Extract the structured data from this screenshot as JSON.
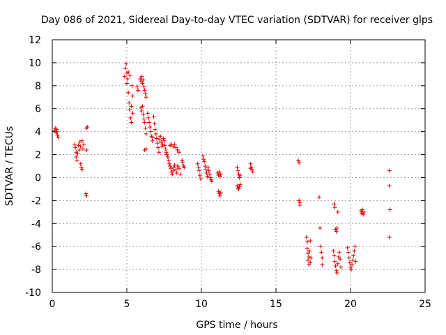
{
  "chart_data": {
    "type": "scatter",
    "title": "Day 086 of 2021, Sidereal Day-to-day VTEC variation (SDTVAR) for receiver glps",
    "xlabel": "GPS time / hours",
    "ylabel": "SDTVAR / TECUs",
    "xlim": [
      0,
      25
    ],
    "ylim": [
      -10,
      12
    ],
    "xticks": [
      0,
      5,
      10,
      15,
      20,
      25
    ],
    "yticks": [
      -10,
      -8,
      -6,
      -4,
      -2,
      0,
      2,
      4,
      6,
      8,
      10,
      12
    ],
    "grid": true,
    "marker": "plus",
    "color": "#e00000",
    "series": [
      {
        "name": "SDTVAR",
        "points": [
          [
            0.15,
            4.1
          ],
          [
            0.2,
            4.3
          ],
          [
            0.25,
            3.9
          ],
          [
            0.3,
            4.0
          ],
          [
            0.35,
            3.7
          ],
          [
            0.4,
            3.5
          ],
          [
            0.3,
            4.2
          ],
          [
            1.5,
            2.9
          ],
          [
            1.55,
            2.6
          ],
          [
            1.6,
            2.2
          ],
          [
            1.6,
            1.8
          ],
          [
            1.65,
            1.5
          ],
          [
            1.7,
            2.1
          ],
          [
            1.75,
            2.8
          ],
          [
            1.8,
            2.4
          ],
          [
            1.85,
            3.1
          ],
          [
            1.9,
            2.7
          ],
          [
            1.9,
            1.2
          ],
          [
            1.95,
            0.9
          ],
          [
            2.0,
            0.7
          ],
          [
            2.0,
            3.2
          ],
          [
            2.05,
            2.5
          ],
          [
            2.1,
            2.9
          ],
          [
            2.3,
            4.3
          ],
          [
            2.35,
            4.4
          ],
          [
            2.3,
            2.4
          ],
          [
            2.25,
            -1.4
          ],
          [
            2.3,
            -1.6
          ],
          [
            4.85,
            8.8
          ],
          [
            4.9,
            9.5
          ],
          [
            4.95,
            9.9
          ],
          [
            5.0,
            8.2
          ],
          [
            5.0,
            9.1
          ],
          [
            5.05,
            8.6
          ],
          [
            5.1,
            9.2
          ],
          [
            5.1,
            7.4
          ],
          [
            5.15,
            6.5
          ],
          [
            5.2,
            5.9
          ],
          [
            5.2,
            8.9
          ],
          [
            5.25,
            5.2
          ],
          [
            5.3,
            4.8
          ],
          [
            5.3,
            6.2
          ],
          [
            5.35,
            8.0
          ],
          [
            5.4,
            7.1
          ],
          [
            5.4,
            5.6
          ],
          [
            5.7,
            7.9
          ],
          [
            5.75,
            7.6
          ],
          [
            5.9,
            8.6
          ],
          [
            5.95,
            8.4
          ],
          [
            6.0,
            8.8
          ],
          [
            6.05,
            8.2
          ],
          [
            6.1,
            8.5
          ],
          [
            6.15,
            7.9
          ],
          [
            6.2,
            7.6
          ],
          [
            6.25,
            7.3
          ],
          [
            6.3,
            7.0
          ],
          [
            5.95,
            6.1
          ],
          [
            6.0,
            5.8
          ],
          [
            6.05,
            6.2
          ],
          [
            6.1,
            5.5
          ],
          [
            6.15,
            5.1
          ],
          [
            6.2,
            4.8
          ],
          [
            6.25,
            4.3
          ],
          [
            6.3,
            3.8
          ],
          [
            6.2,
            2.4
          ],
          [
            6.3,
            2.5
          ],
          [
            6.4,
            5.6
          ],
          [
            6.45,
            5.2
          ],
          [
            6.5,
            4.8
          ],
          [
            6.55,
            4.4
          ],
          [
            6.6,
            4.0
          ],
          [
            6.65,
            3.6
          ],
          [
            6.7,
            3.2
          ],
          [
            6.75,
            3.5
          ],
          [
            6.8,
            5.3
          ],
          [
            6.85,
            4.7
          ],
          [
            6.9,
            4.2
          ],
          [
            6.95,
            3.8
          ],
          [
            7.0,
            3.4
          ],
          [
            7.05,
            3.0
          ],
          [
            7.1,
            2.6
          ],
          [
            7.15,
            2.2
          ],
          [
            7.2,
            3.3
          ],
          [
            7.25,
            3.6
          ],
          [
            7.3,
            3.1
          ],
          [
            7.35,
            2.7
          ],
          [
            7.4,
            2.9
          ],
          [
            7.45,
            3.4
          ],
          [
            7.5,
            3.2
          ],
          [
            7.55,
            2.8
          ],
          [
            7.6,
            2.5
          ],
          [
            7.65,
            2.2
          ],
          [
            7.7,
            2.0
          ],
          [
            7.75,
            1.8
          ],
          [
            7.8,
            1.5
          ],
          [
            7.85,
            1.2
          ],
          [
            7.9,
            2.8
          ],
          [
            8.0,
            2.9
          ],
          [
            8.1,
            2.7
          ],
          [
            8.2,
            2.9
          ],
          [
            8.3,
            2.6
          ],
          [
            8.4,
            2.4
          ],
          [
            8.5,
            2.2
          ],
          [
            7.9,
            1.0
          ],
          [
            7.95,
            0.8
          ],
          [
            8.0,
            0.5
          ],
          [
            8.05,
            0.3
          ],
          [
            8.1,
            0.6
          ],
          [
            8.15,
            0.9
          ],
          [
            8.2,
            1.1
          ],
          [
            8.3,
            0.7
          ],
          [
            8.35,
            0.4
          ],
          [
            8.4,
            1.0
          ],
          [
            8.5,
            0.8
          ],
          [
            8.6,
            0.3
          ],
          [
            8.7,
            1.5
          ],
          [
            8.75,
            1.3
          ],
          [
            8.8,
            1.0
          ],
          [
            8.85,
            0.9
          ],
          [
            9.75,
            1.2
          ],
          [
            9.8,
            0.9
          ],
          [
            9.85,
            0.6
          ],
          [
            9.9,
            0.2
          ],
          [
            9.95,
            -0.1
          ],
          [
            10.1,
            1.9
          ],
          [
            10.15,
            1.6
          ],
          [
            10.2,
            1.4
          ],
          [
            10.25,
            1.0
          ],
          [
            10.3,
            0.7
          ],
          [
            10.35,
            0.4
          ],
          [
            10.4,
            0.1
          ],
          [
            10.45,
            0.9
          ],
          [
            10.5,
            0.6
          ],
          [
            10.55,
            0.3
          ],
          [
            10.6,
            0.0
          ],
          [
            10.65,
            -0.2
          ],
          [
            10.7,
            -0.3
          ],
          [
            11.1,
            0.4
          ],
          [
            11.15,
            0.2
          ],
          [
            11.2,
            0.5
          ],
          [
            11.25,
            0.1
          ],
          [
            11.3,
            0.3
          ],
          [
            11.15,
            -1.2
          ],
          [
            11.2,
            -1.4
          ],
          [
            11.25,
            -1.6
          ],
          [
            11.3,
            -1.3
          ],
          [
            12.4,
            0.9
          ],
          [
            12.45,
            0.6
          ],
          [
            12.5,
            0.3
          ],
          [
            12.55,
            0.0
          ],
          [
            12.6,
            0.2
          ],
          [
            12.4,
            -0.7
          ],
          [
            12.45,
            -0.9
          ],
          [
            12.5,
            -1.0
          ],
          [
            12.55,
            -0.8
          ],
          [
            12.6,
            -0.6
          ],
          [
            13.3,
            1.2
          ],
          [
            13.35,
            0.9
          ],
          [
            13.4,
            0.7
          ],
          [
            13.45,
            0.5
          ],
          [
            13.3,
            0.8
          ],
          [
            16.5,
            1.5
          ],
          [
            16.55,
            1.3
          ],
          [
            16.55,
            -2.0
          ],
          [
            16.6,
            -2.4
          ],
          [
            16.6,
            -2.2
          ],
          [
            17.05,
            -5.2
          ],
          [
            17.1,
            -5.6
          ],
          [
            17.1,
            -6.2
          ],
          [
            17.15,
            -6.6
          ],
          [
            17.15,
            -7.2
          ],
          [
            17.2,
            -7.6
          ],
          [
            17.2,
            -6.9
          ],
          [
            17.25,
            -6.4
          ],
          [
            17.3,
            -5.5
          ],
          [
            17.35,
            -7.0
          ],
          [
            17.3,
            -7.4
          ],
          [
            17.9,
            -1.7
          ],
          [
            17.95,
            -4.4
          ],
          [
            18.0,
            -6.0
          ],
          [
            18.05,
            -6.5
          ],
          [
            18.1,
            -7.0
          ],
          [
            18.1,
            -7.6
          ],
          [
            18.9,
            -2.3
          ],
          [
            18.95,
            -2.6
          ],
          [
            19.0,
            -4.5
          ],
          [
            19.05,
            -4.7
          ],
          [
            19.1,
            -4.4
          ],
          [
            19.15,
            -3.0
          ],
          [
            18.85,
            -6.4
          ],
          [
            18.9,
            -6.8
          ],
          [
            18.95,
            -7.3
          ],
          [
            19.0,
            -7.7
          ],
          [
            19.05,
            -8.1
          ],
          [
            19.1,
            -8.3
          ],
          [
            19.15,
            -7.5
          ],
          [
            19.2,
            -6.9
          ],
          [
            19.25,
            -6.5
          ],
          [
            19.3,
            -7.1
          ],
          [
            19.35,
            -7.8
          ],
          [
            19.8,
            -6.1
          ],
          [
            19.85,
            -6.5
          ],
          [
            19.9,
            -7.0
          ],
          [
            19.95,
            -7.4
          ],
          [
            20.0,
            -7.8
          ],
          [
            20.05,
            -8.0
          ],
          [
            20.1,
            -7.6
          ],
          [
            20.15,
            -7.2
          ],
          [
            20.2,
            -6.8
          ],
          [
            20.25,
            -6.4
          ],
          [
            20.3,
            -6.0
          ],
          [
            20.35,
            -7.3
          ],
          [
            20.7,
            -2.9
          ],
          [
            20.75,
            -3.1
          ],
          [
            20.8,
            -2.8
          ],
          [
            20.85,
            -3.2
          ],
          [
            20.9,
            -3.0
          ],
          [
            22.6,
            0.6
          ],
          [
            22.6,
            -0.7
          ],
          [
            22.65,
            -2.8
          ],
          [
            22.6,
            -5.2
          ]
        ]
      }
    ]
  }
}
